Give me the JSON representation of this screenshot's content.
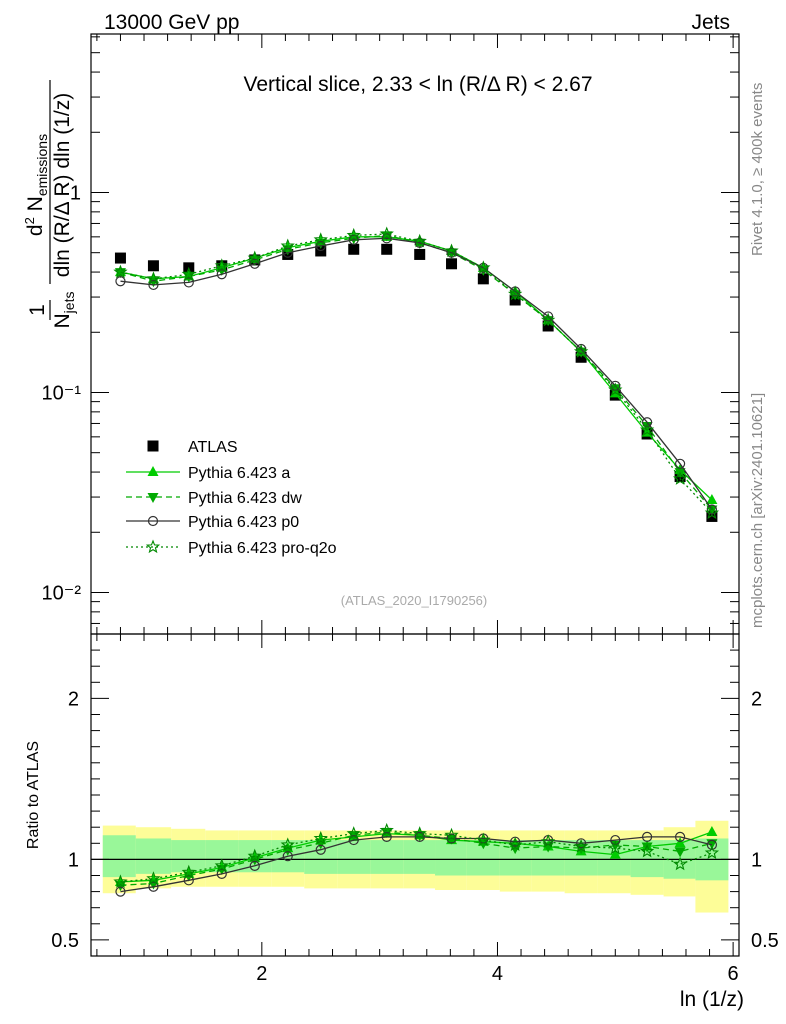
{
  "header": {
    "left": "13000 GeV pp",
    "right": "Jets",
    "side_rivet": "Rivet 4.1.0, ≥ 400k events",
    "side_mcplots": "mcplots.cern.ch [arXiv:2401.10621]"
  },
  "colors": {
    "data": "#000000",
    "a": "#00cc00",
    "dw": "#00aa00",
    "p0": "#333333",
    "proq2o": "#008800",
    "band_green": "#99f799",
    "band_yellow": "#fdfd98"
  },
  "chart_data": [
    {
      "type": "scatter",
      "title": "Vertical slice, 2.33 < ln (R/Δ R) < 2.67",
      "watermark": "(ATLAS_2020_I1790256)",
      "ylabel": "1/N_jets d²N_emissions / dln(R/ΔR) dln(1/z)",
      "yscale": "log",
      "xlim": [
        0.55,
        6.05
      ],
      "ylim": [
        0.0062,
        6.2
      ],
      "y_ticks": [
        {
          "value": 1,
          "label": "1"
        },
        {
          "value": 0.1,
          "label": "10⁻¹"
        },
        {
          "value": 0.01,
          "label": "10⁻²"
        }
      ],
      "x": [
        0.8,
        1.08,
        1.38,
        1.66,
        1.94,
        2.22,
        2.5,
        2.78,
        3.06,
        3.34,
        3.61,
        3.88,
        4.15,
        4.43,
        4.71,
        5.0,
        5.27,
        5.55,
        5.82
      ],
      "series": [
        {
          "key": "data",
          "name": "ATLAS",
          "marker": "square",
          "line": "none",
          "values": [
            0.47,
            0.43,
            0.42,
            0.43,
            0.46,
            0.49,
            0.51,
            0.52,
            0.52,
            0.49,
            0.44,
            0.37,
            0.29,
            0.215,
            0.15,
            0.097,
            0.062,
            0.038,
            0.024
          ]
        },
        {
          "key": "a",
          "name": "Pythia 6.423 a",
          "marker": "triangle-up",
          "line": "solid",
          "values": [
            0.4,
            0.37,
            0.38,
            0.42,
            0.47,
            0.53,
            0.57,
            0.6,
            0.6,
            0.57,
            0.51,
            0.42,
            0.32,
            0.23,
            0.16,
            0.099,
            0.063,
            0.041,
            0.029
          ]
        },
        {
          "key": "dw",
          "name": "Pythia 6.423 dw",
          "marker": "triangle-down",
          "line": "dashed",
          "values": [
            0.4,
            0.36,
            0.38,
            0.41,
            0.46,
            0.52,
            0.56,
            0.59,
            0.61,
            0.56,
            0.5,
            0.41,
            0.31,
            0.23,
            0.16,
            0.105,
            0.068,
            0.04,
            0.026
          ]
        },
        {
          "key": "p0",
          "name": "Pythia 6.423 p0",
          "marker": "circle-open",
          "line": "solid",
          "values": [
            0.36,
            0.345,
            0.355,
            0.39,
            0.44,
            0.5,
            0.54,
            0.58,
            0.59,
            0.56,
            0.5,
            0.42,
            0.32,
            0.24,
            0.165,
            0.108,
            0.071,
            0.044,
            0.026
          ]
        },
        {
          "key": "proq2o",
          "name": "Pythia 6.423 pro-q2o",
          "marker": "star-open",
          "line": "dotted",
          "values": [
            0.4,
            0.37,
            0.39,
            0.43,
            0.47,
            0.54,
            0.58,
            0.61,
            0.62,
            0.57,
            0.51,
            0.42,
            0.31,
            0.23,
            0.16,
            0.103,
            0.065,
            0.037,
            0.025
          ]
        }
      ]
    },
    {
      "type": "line",
      "ylabel": "Ratio to ATLAS",
      "xlabel": "ln (1/z)",
      "xlim": [
        0.55,
        6.05
      ],
      "ylim": [
        0.4,
        2.4
      ],
      "y_ticks": [
        {
          "value": 0.5,
          "label": "0.5"
        },
        {
          "value": 1,
          "label": "1"
        },
        {
          "value": 2,
          "label": "2"
        }
      ],
      "x_ticks": [
        {
          "value": 2,
          "label": "2"
        },
        {
          "value": 4,
          "label": "4"
        },
        {
          "value": 6,
          "label": "6"
        }
      ],
      "bin_edges": [
        0.65,
        0.93,
        1.23,
        1.52,
        1.8,
        2.08,
        2.36,
        2.64,
        2.92,
        3.2,
        3.47,
        3.74,
        4.02,
        4.29,
        4.57,
        4.85,
        5.13,
        5.41,
        5.68,
        5.96
      ],
      "band_green": [
        [
          0.89,
          1.15
        ],
        [
          0.91,
          1.13
        ],
        [
          0.92,
          1.12
        ],
        [
          0.92,
          1.12
        ],
        [
          0.92,
          1.12
        ],
        [
          0.92,
          1.12
        ],
        [
          0.91,
          1.12
        ],
        [
          0.91,
          1.12
        ],
        [
          0.91,
          1.12
        ],
        [
          0.91,
          1.12
        ],
        [
          0.9,
          1.12
        ],
        [
          0.9,
          1.12
        ],
        [
          0.9,
          1.12
        ],
        [
          0.9,
          1.12
        ],
        [
          0.9,
          1.12
        ],
        [
          0.9,
          1.12
        ],
        [
          0.89,
          1.12
        ],
        [
          0.88,
          1.12
        ],
        [
          0.87,
          1.13
        ]
      ],
      "band_yellow": [
        [
          0.79,
          1.21
        ],
        [
          0.82,
          1.2
        ],
        [
          0.83,
          1.19
        ],
        [
          0.83,
          1.18
        ],
        [
          0.83,
          1.18
        ],
        [
          0.83,
          1.18
        ],
        [
          0.82,
          1.18
        ],
        [
          0.82,
          1.18
        ],
        [
          0.82,
          1.18
        ],
        [
          0.82,
          1.18
        ],
        [
          0.81,
          1.18
        ],
        [
          0.81,
          1.18
        ],
        [
          0.8,
          1.18
        ],
        [
          0.8,
          1.18
        ],
        [
          0.79,
          1.18
        ],
        [
          0.79,
          1.18
        ],
        [
          0.78,
          1.18
        ],
        [
          0.77,
          1.2
        ],
        [
          0.67,
          1.24
        ]
      ],
      "x": [
        0.8,
        1.08,
        1.38,
        1.66,
        1.94,
        2.22,
        2.5,
        2.78,
        3.06,
        3.34,
        3.61,
        3.88,
        4.15,
        4.43,
        4.71,
        5.0,
        5.27,
        5.55,
        5.82
      ],
      "series": [
        {
          "key": "a",
          "name": "Pythia 6.423 a",
          "marker": "triangle-up",
          "line": "solid",
          "values": [
            0.86,
            0.87,
            0.91,
            0.95,
            1.01,
            1.07,
            1.12,
            1.14,
            1.16,
            1.15,
            1.12,
            1.11,
            1.1,
            1.08,
            1.05,
            1.03,
            1.08,
            1.1,
            1.17
          ]
        },
        {
          "key": "dw",
          "name": "Pythia 6.423 dw",
          "marker": "triangle-down",
          "line": "dashed",
          "values": [
            0.84,
            0.85,
            0.9,
            0.94,
            1.0,
            1.06,
            1.1,
            1.15,
            1.17,
            1.15,
            1.13,
            1.1,
            1.07,
            1.08,
            1.07,
            1.09,
            1.08,
            1.05,
            1.1
          ]
        },
        {
          "key": "p0",
          "name": "Pythia 6.423 p0",
          "marker": "circle-open",
          "line": "solid",
          "values": [
            0.8,
            0.83,
            0.87,
            0.91,
            0.96,
            1.02,
            1.06,
            1.12,
            1.14,
            1.14,
            1.13,
            1.13,
            1.11,
            1.12,
            1.1,
            1.12,
            1.14,
            1.14,
            1.09
          ]
        },
        {
          "key": "proq2o",
          "name": "Pythia 6.423 pro-q2o",
          "marker": "star-open",
          "line": "dotted",
          "values": [
            0.86,
            0.88,
            0.92,
            0.96,
            1.02,
            1.09,
            1.13,
            1.16,
            1.18,
            1.16,
            1.15,
            1.12,
            1.09,
            1.11,
            1.08,
            1.07,
            1.05,
            0.97,
            1.04
          ]
        }
      ]
    }
  ]
}
